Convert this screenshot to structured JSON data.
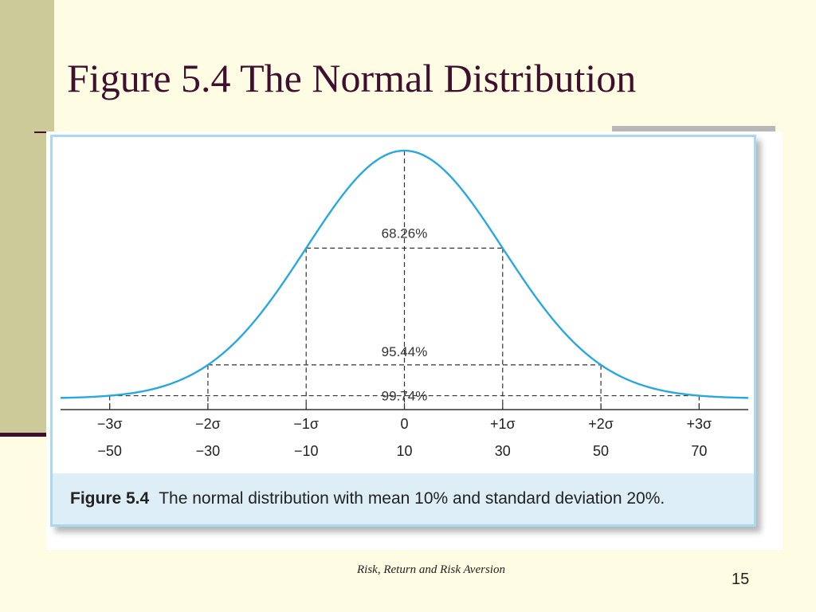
{
  "slide": {
    "title": "Figure 5.4 The Normal Distribution",
    "footer": "Risk, Return and Risk Aversion",
    "page_number": "15"
  },
  "figure": {
    "caption_label": "Figure 5.4",
    "caption_text": "The normal distribution with mean 10% and standard deviation 20%."
  },
  "colors": {
    "title": "#3E0F2E",
    "curve": "#29A8DF",
    "frame_border": "#A9D9F1",
    "caption_bg": "#DDEEF7",
    "side_band": "#CDCA9A",
    "slide_bg": "#FEFCE2"
  },
  "chart_data": {
    "type": "line",
    "title": "",
    "mean": 10,
    "std_dev": 20,
    "xlim": [
      -60,
      80
    ],
    "x_ticks": [
      {
        "sigma": "−3σ",
        "value": "−50",
        "x": -50
      },
      {
        "sigma": "−2σ",
        "value": "−30",
        "x": -30
      },
      {
        "sigma": "−1σ",
        "value": "−10",
        "x": -10
      },
      {
        "sigma": "0",
        "value": "10",
        "x": 10
      },
      {
        "sigma": "+1σ",
        "value": "30",
        "x": 30
      },
      {
        "sigma": "+2σ",
        "value": "50",
        "x": 50
      },
      {
        "sigma": "+3σ",
        "value": "70",
        "x": 70
      }
    ],
    "intervals": [
      {
        "label": "68.26%",
        "from": -10,
        "to": 30
      },
      {
        "label": "95.44%",
        "from": -30,
        "to": 50
      },
      {
        "label": "99.74%",
        "from": -50,
        "to": 70
      }
    ],
    "grid": false,
    "legend": "none"
  }
}
